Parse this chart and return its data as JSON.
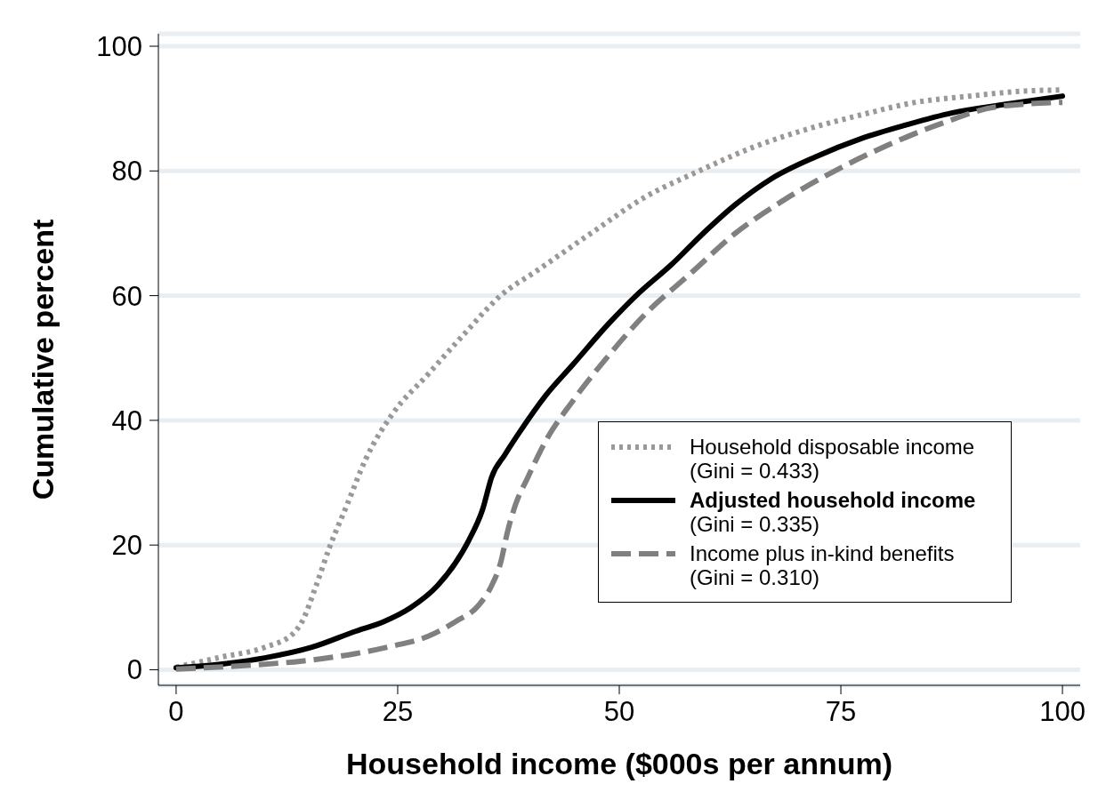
{
  "chart_data": {
    "type": "line",
    "xlabel": "Household income ($000s per annum)",
    "ylabel": "Cumulative percent",
    "xlim": [
      -2,
      102
    ],
    "xticks": [
      0,
      25,
      50,
      75,
      100
    ],
    "ylim": [
      -2.5,
      102
    ],
    "yticks": [
      0,
      20,
      40,
      60,
      80,
      100
    ],
    "grid": "y",
    "legend": "bottom right",
    "marker": "none",
    "series": [
      {
        "name": "Household disposable income\n(Gini = 0.433)",
        "color": "#999999",
        "line_style": "dotted",
        "x": [
          0,
          5,
          10,
          13.2,
          14.2,
          15.8,
          17.3,
          19.3,
          21.4,
          24.4,
          28.5,
          32.6,
          36.6,
          40.7,
          46.8,
          52.9,
          59,
          65.1,
          71.2,
          77.3,
          83.4,
          89.5,
          95.6,
          100
        ],
        "values": [
          0.4,
          2,
          3.6,
          5.8,
          7.7,
          13.5,
          19.6,
          26.5,
          33.8,
          41,
          47.5,
          54,
          60,
          64,
          70,
          75.8,
          80,
          83.8,
          86.7,
          89,
          91,
          92,
          92.8,
          93
        ]
      },
      {
        "name": "Adjusted household income\n(Gini = 0.335)",
        "color": "#000000",
        "line_style": "solid",
        "x": [
          0,
          5,
          10,
          15.3,
          20.3,
          23.4,
          26.4,
          29.5,
          31.5,
          33,
          34.6,
          35.6,
          37.1,
          38.7,
          41.7,
          44.8,
          48.8,
          51.9,
          55.9,
          60,
          63.1,
          67.1,
          72.2,
          77.3,
          82.4,
          87.5,
          93.6,
          100
        ],
        "values": [
          0.3,
          0.9,
          1.9,
          3.6,
          6.2,
          7.7,
          9.9,
          13.5,
          17.1,
          20.7,
          25.8,
          30.9,
          34.5,
          38,
          44,
          49,
          55.5,
          60,
          65,
          70.7,
          74.6,
          78.7,
          82.3,
          85.2,
          87.4,
          89.3,
          90.7,
          92
        ]
      },
      {
        "name": "Income plus in-kind benefits\n(Gini = 0.310)",
        "color": "#808080",
        "line_style": "dashed",
        "x": [
          0,
          8.1,
          14.2,
          20.3,
          24.4,
          28.5,
          31.5,
          34.1,
          35.6,
          36.6,
          37.4,
          38.3,
          39.7,
          41.7,
          44.8,
          48.8,
          52.9,
          58,
          63.1,
          68.2,
          74.3,
          80.4,
          86.5,
          92.6,
          100
        ],
        "values": [
          0.1,
          0.7,
          1.4,
          2.6,
          3.8,
          5.4,
          7.7,
          10.3,
          13.5,
          17.1,
          22.2,
          26.5,
          30.9,
          36.7,
          43.2,
          50.4,
          57,
          63.5,
          70,
          75,
          80,
          84.2,
          87.7,
          90.3,
          91
        ]
      }
    ]
  }
}
